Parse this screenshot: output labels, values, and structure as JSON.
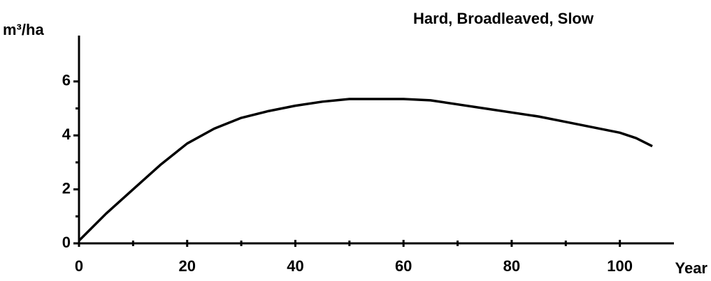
{
  "chart_data": {
    "type": "line",
    "title": "Hard, Broadleaved, Slow",
    "x_label": "Year",
    "y_label": "m³/ha",
    "x": [
      0,
      5,
      10,
      15,
      20,
      25,
      30,
      35,
      40,
      45,
      50,
      55,
      60,
      65,
      70,
      75,
      80,
      85,
      90,
      95,
      100,
      103,
      106
    ],
    "series": [
      {
        "color": "#000000",
        "values": [
          0.1,
          1.1,
          2.0,
          2.9,
          3.7,
          4.25,
          4.65,
          4.9,
          5.1,
          5.25,
          5.35,
          5.35,
          5.35,
          5.3,
          5.15,
          5.0,
          4.85,
          4.7,
          4.5,
          4.3,
          4.1,
          3.9,
          3.6
        ]
      }
    ],
    "xlim": [
      0,
      110
    ],
    "ylim": [
      0,
      7.7
    ],
    "xticks": [
      0,
      20,
      40,
      60,
      80,
      100
    ],
    "yticks": [
      0,
      2,
      4,
      6
    ],
    "xminorticks": [
      10,
      30,
      50,
      70,
      90
    ],
    "yminorticks": [
      1,
      3,
      5
    ],
    "grid": false
  }
}
